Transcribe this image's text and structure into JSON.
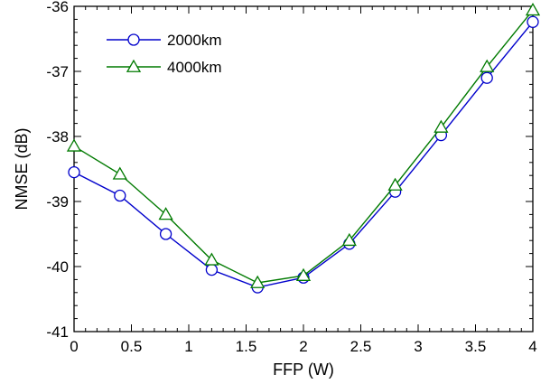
{
  "chart_data": {
    "type": "line",
    "title": "",
    "xlabel": "FFP (W)",
    "ylabel": "NMSE (dB)",
    "xlim": [
      0,
      4
    ],
    "ylim": [
      -41,
      -36
    ],
    "xticks": [
      0,
      0.5,
      1,
      1.5,
      2,
      2.5,
      3,
      3.5,
      4
    ],
    "xtick_labels": [
      "0",
      "0.5",
      "1",
      "1.5",
      "2",
      "2.5",
      "3",
      "3.5",
      "4"
    ],
    "yticks": [
      -41,
      -40,
      -39,
      -38,
      -37,
      -36
    ],
    "ytick_labels": [
      "-41",
      "-40",
      "-39",
      "-38",
      "-37",
      "-36"
    ],
    "grid": false,
    "legend_position": "top-left",
    "x": [
      0,
      0.4,
      0.8,
      1.2,
      1.6,
      2.0,
      2.4,
      2.8,
      3.2,
      3.6,
      4.0
    ],
    "series": [
      {
        "name": "2000km",
        "color": "#0000cc",
        "marker": "circle",
        "values": [
          -38.55,
          -38.91,
          -39.5,
          -40.05,
          -40.32,
          -40.17,
          -39.65,
          -38.85,
          -37.98,
          -37.1,
          -36.24
        ]
      },
      {
        "name": "4000km",
        "color": "#007a00",
        "marker": "triangle",
        "values": [
          -38.15,
          -38.58,
          -39.2,
          -39.9,
          -40.25,
          -40.14,
          -39.6,
          -38.75,
          -37.86,
          -36.93,
          -36.06
        ]
      }
    ]
  }
}
